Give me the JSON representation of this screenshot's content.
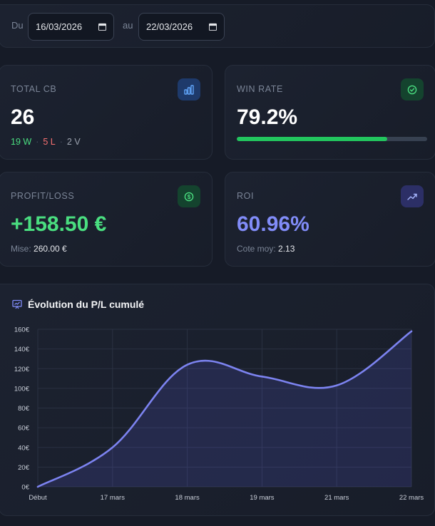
{
  "filter": {
    "from_label": "Du",
    "from_value": "16/03/2026",
    "to_label": "au",
    "to_value": "22/03/2026"
  },
  "cards": {
    "total": {
      "title": "TOTAL CB",
      "value": "26",
      "wins": "19 W",
      "losses": "5 L",
      "voids": "2 V",
      "sep": "·"
    },
    "winrate": {
      "title": "WIN RATE",
      "value": "79.2%",
      "progress": 79.2
    },
    "pl": {
      "title": "PROFIT/LOSS",
      "value": "+158.50 €",
      "stake_label": "Mise:",
      "stake_value": "260.00 €"
    },
    "roi": {
      "title": "ROI",
      "value": "60.96%",
      "odds_label": "Cote moy:",
      "odds_value": "2.13"
    }
  },
  "colors": {
    "green": "#4ade80",
    "red": "#f87171",
    "indigo": "#818cf8",
    "line": "#7c83f0"
  },
  "chart_data": {
    "type": "area",
    "title": "Évolution du P/L cumulé",
    "categories": [
      "Début",
      "17 mars",
      "18 mars",
      "19 mars",
      "21 mars",
      "22 mars"
    ],
    "values": [
      0,
      40,
      124,
      112,
      103,
      158
    ],
    "yticks": [
      "160€",
      "140€",
      "120€",
      "100€",
      "80€",
      "60€",
      "40€",
      "20€",
      "0€"
    ],
    "ylim": [
      0,
      160
    ],
    "xlabel": "",
    "ylabel": ""
  }
}
